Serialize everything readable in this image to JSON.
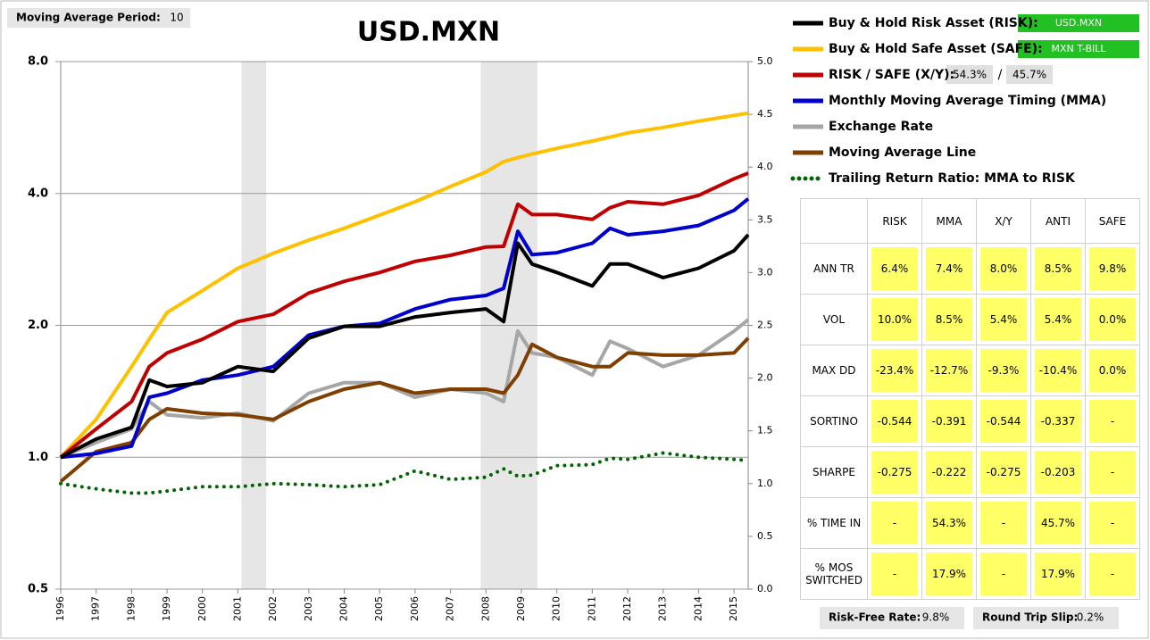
{
  "settings": {
    "label": "Moving Average Period:",
    "value": "10"
  },
  "chart_data": {
    "type": "line",
    "title": "USD.MXN",
    "x": [
      1996,
      1997,
      1998,
      1998.5,
      1999,
      2000,
      2001,
      2002,
      2003,
      2004,
      2005,
      2006,
      2007,
      2008,
      2008.5,
      2008.9,
      2009.3,
      2010,
      2011,
      2011.5,
      2012,
      2013,
      2014,
      2015,
      2015.4
    ],
    "xlim": [
      1996,
      2015.4
    ],
    "xticks": [
      1996,
      1997,
      1998,
      1999,
      2000,
      2001,
      2002,
      2003,
      2004,
      2005,
      2006,
      2007,
      2008,
      2009,
      2010,
      2011,
      2012,
      2013,
      2014,
      2015
    ],
    "ylim": [
      0.5,
      8
    ],
    "log_y": true,
    "grid": true,
    "yticks": [
      {
        "value": 0.5,
        "label": "0.5"
      },
      {
        "value": 1,
        "label": "1.0"
      },
      {
        "value": 2,
        "label": "2.0"
      },
      {
        "value": 4,
        "label": "4.0"
      },
      {
        "value": 8,
        "label": "8.0"
      }
    ],
    "y2lim": [
      0,
      5
    ],
    "y2ticks": [
      {
        "value": 0,
        "label": "0.0"
      },
      {
        "value": 0.5,
        "label": "0.5"
      },
      {
        "value": 1,
        "label": "1.0"
      },
      {
        "value": 1.5,
        "label": "1.5"
      },
      {
        "value": 2,
        "label": "2.0"
      },
      {
        "value": 2.5,
        "label": "2.5"
      },
      {
        "value": 3,
        "label": "3.0"
      },
      {
        "value": 3.5,
        "label": "3.5"
      },
      {
        "value": 4,
        "label": "4.0"
      },
      {
        "value": 4.5,
        "label": "4.5"
      },
      {
        "value": 5,
        "label": "5.0"
      }
    ],
    "shaded_regions": [
      [
        2001.1,
        2001.8
      ],
      [
        2007.85,
        2009.45
      ]
    ],
    "series": [
      {
        "name": "Buy & Hold Risk Asset (RISK):",
        "color": "#000000",
        "values": [
          1.0,
          1.1,
          1.17,
          1.5,
          1.45,
          1.48,
          1.61,
          1.57,
          1.87,
          1.99,
          1.99,
          2.09,
          2.14,
          2.18,
          2.04,
          3.08,
          2.76,
          2.64,
          2.46,
          2.76,
          2.76,
          2.57,
          2.7,
          2.96,
          3.22
        ]
      },
      {
        "name": "Buy & Hold Safe Asset (SAFE):",
        "color": "#ffc000",
        "values": [
          1.0,
          1.22,
          1.61,
          1.86,
          2.14,
          2.4,
          2.7,
          2.92,
          3.13,
          3.33,
          3.57,
          3.83,
          4.15,
          4.48,
          4.73,
          4.83,
          4.92,
          5.07,
          5.27,
          5.38,
          5.5,
          5.66,
          5.85,
          6.03,
          6.1
        ]
      },
      {
        "name": "RISK / SAFE (X/Y):",
        "color": "#c00000",
        "values": [
          1.0,
          1.16,
          1.34,
          1.61,
          1.73,
          1.86,
          2.04,
          2.12,
          2.37,
          2.52,
          2.64,
          2.8,
          2.89,
          3.02,
          3.03,
          3.78,
          3.58,
          3.58,
          3.49,
          3.71,
          3.83,
          3.78,
          3.96,
          4.32,
          4.45
        ]
      },
      {
        "name": "Monthly Moving Average Timing (MMA)",
        "color": "#0000cc",
        "values": [
          1.0,
          1.02,
          1.06,
          1.37,
          1.4,
          1.5,
          1.54,
          1.61,
          1.9,
          1.99,
          2.02,
          2.18,
          2.29,
          2.34,
          2.43,
          3.28,
          2.9,
          2.93,
          3.08,
          3.33,
          3.22,
          3.28,
          3.38,
          3.66,
          3.89
        ]
      },
      {
        "name": "Exchange Rate",
        "color": "#a6a6a6",
        "values": [
          1.0,
          1.08,
          1.16,
          1.34,
          1.25,
          1.23,
          1.26,
          1.21,
          1.4,
          1.48,
          1.48,
          1.37,
          1.43,
          1.4,
          1.34,
          1.94,
          1.73,
          1.69,
          1.54,
          1.84,
          1.77,
          1.61,
          1.71,
          1.94,
          2.06
        ]
      },
      {
        "name": "Moving Average Line",
        "color": "#7f3f00",
        "values": [
          0.88,
          1.03,
          1.08,
          1.22,
          1.29,
          1.26,
          1.25,
          1.22,
          1.34,
          1.43,
          1.48,
          1.4,
          1.43,
          1.43,
          1.4,
          1.54,
          1.81,
          1.69,
          1.61,
          1.61,
          1.73,
          1.71,
          1.71,
          1.73,
          1.87
        ]
      },
      {
        "name": "Trailing Return Ratio: MMA to RISK",
        "color": "#006400",
        "axis": "y2",
        "dotted": true,
        "values": [
          1.0,
          0.95,
          0.91,
          0.91,
          0.93,
          0.97,
          0.97,
          1.0,
          0.99,
          0.97,
          0.99,
          1.12,
          1.04,
          1.06,
          1.14,
          1.07,
          1.08,
          1.17,
          1.18,
          1.24,
          1.23,
          1.29,
          1.25,
          1.23,
          1.22
        ]
      }
    ]
  },
  "allocation": {
    "risk_asset": "USD.MXN",
    "safe_asset": "MXN T-BILL",
    "risk_weight": "54.3%",
    "separator": "/",
    "safe_weight": "45.7%"
  },
  "stats_table": {
    "headers": [
      "RISK",
      "MMA",
      "X/Y",
      "ANTI",
      "SAFE"
    ],
    "rows": [
      [
        "ANN TR",
        "6.4%",
        "7.4%",
        "8.0%",
        "8.5%",
        "9.8%"
      ],
      [
        "VOL",
        "10.0%",
        "8.5%",
        "5.4%",
        "5.4%",
        "0.0%"
      ],
      [
        "MAX DD",
        "-23.4%",
        "-12.7%",
        "-9.3%",
        "-10.4%",
        "0.0%"
      ],
      [
        "SORTINO",
        "-0.544",
        "-0.391",
        "-0.544",
        "-0.337",
        "-"
      ],
      [
        "SHARPE",
        "-0.275",
        "-0.222",
        "-0.275",
        "-0.203",
        "-"
      ],
      [
        "% TIME IN",
        "-",
        "54.3%",
        "-",
        "45.7%",
        "-"
      ],
      [
        "% MOS SWITCHED",
        "-",
        "17.9%",
        "-",
        "17.9%",
        "-"
      ]
    ]
  },
  "footer": {
    "risk_free_label": "Risk-Free Rate:",
    "risk_free_value": "9.8%",
    "slip_label": "Round Trip Slip:",
    "slip_value": "0.2%"
  }
}
